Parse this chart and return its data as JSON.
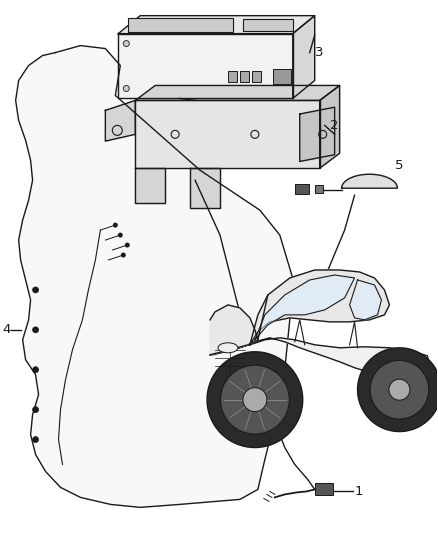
{
  "bg_color": "#ffffff",
  "line_color": "#1a1a1a",
  "figsize": [
    4.38,
    5.33
  ],
  "dpi": 100,
  "label_fontsize": 9.5,
  "lw": 1.0
}
